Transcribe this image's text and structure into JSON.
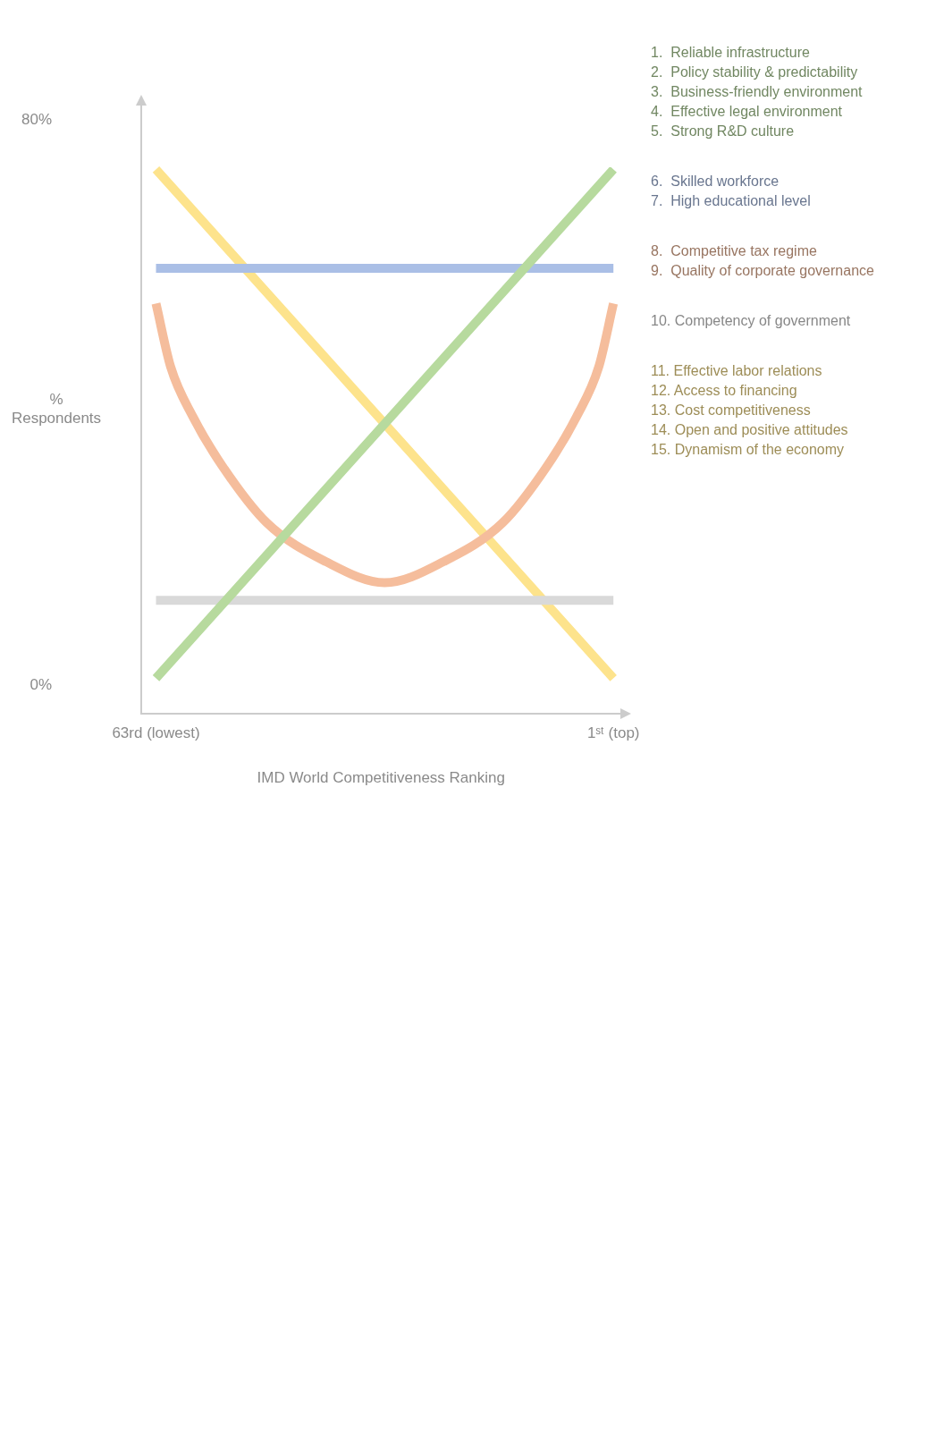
{
  "chart_data": {
    "type": "line",
    "xlabel": "IMD World Competitiveness Ranking",
    "ylabel": "%\nRespondents",
    "xlim": [
      65,
      0
    ],
    "xticks": [
      {
        "value": 63,
        "label": "63rd (lowest)"
      },
      {
        "value": 1,
        "label": "1ˢᵗ (top)"
      }
    ],
    "ylim": [
      -4,
      82
    ],
    "yticks": [
      {
        "value": 0,
        "label": "0%"
      },
      {
        "value": 80,
        "label": "80%"
      }
    ],
    "grid": false,
    "legend": "right",
    "marker": "none",
    "line_style": "solid",
    "series": [
      {
        "name": "1.  Reliable infrastructure\n2.  Policy stability & predictability\n3.  Business-friendly environment\n4.  Effective legal environment\n5.  Strong R&D culture",
        "color": "#b7da9e",
        "x": [
          63,
          1
        ],
        "values": [
          1,
          73
        ]
      },
      {
        "name": "6.  Skilled workforce\n7.  High educational level",
        "color": "#aabfe6",
        "x": [
          63,
          1
        ],
        "values": [
          59,
          59
        ]
      },
      {
        "name": "8.  Competitive tax regime\n9.  Quality of corporate governance",
        "color": "#f5bd9c",
        "x": [
          63,
          61,
          58,
          54,
          48,
          40,
          32,
          24,
          16,
          10,
          6,
          3,
          1
        ],
        "values": [
          54,
          45,
          38,
          31,
          23,
          17.5,
          14.5,
          17.5,
          23,
          31,
          38,
          45,
          54
        ]
      },
      {
        "name": "10. Competency of government",
        "color": "#d9d9d9",
        "x": [
          63,
          1
        ],
        "values": [
          12,
          12
        ]
      },
      {
        "name": "11. Effective labor relations\n12. Access to financing\n13. Cost competitiveness\n14. Open and positive attitudes\n15. Dynamism of the economy",
        "color": "#fde38c",
        "x": [
          63,
          1
        ],
        "values": [
          73,
          1
        ]
      }
    ]
  }
}
